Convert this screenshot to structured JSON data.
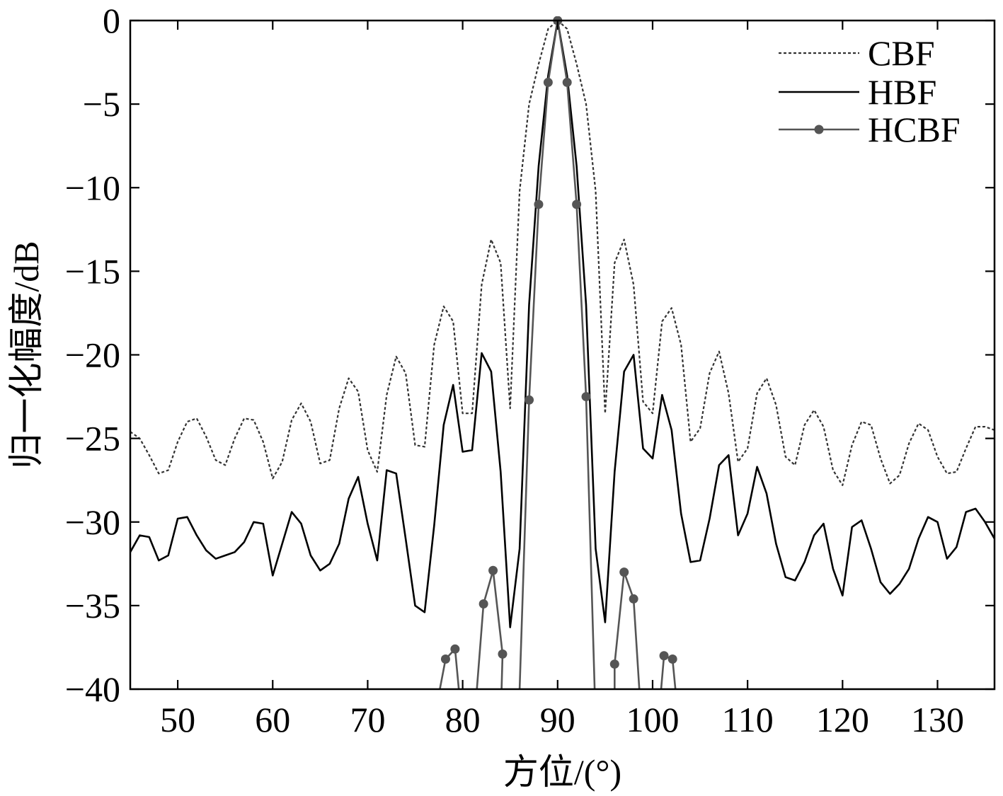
{
  "chart_data": {
    "type": "line",
    "title": "",
    "xlabel": "方位/(°)",
    "ylabel": "归一化幅度/dB",
    "xlim": [
      45,
      136
    ],
    "ylim": [
      -40,
      0
    ],
    "xticks": [
      50,
      60,
      70,
      80,
      90,
      100,
      110,
      120,
      130
    ],
    "yticks": [
      0,
      -5,
      -10,
      -15,
      -20,
      -25,
      -30,
      -35,
      -40
    ],
    "grid": false,
    "legend_position": "top-right",
    "series": [
      {
        "name": "CBF",
        "style": "dotted",
        "color": "#333333",
        "x": [
          45,
          46,
          47,
          48,
          49,
          50,
          51,
          52,
          53,
          54,
          55,
          56,
          57,
          58,
          59,
          60,
          61,
          62,
          63,
          64,
          65,
          66,
          67,
          68,
          69,
          70,
          71,
          72,
          73,
          74,
          75,
          76,
          77,
          78,
          79,
          80,
          81,
          82,
          83,
          84,
          85,
          86,
          87,
          88,
          89,
          90,
          91,
          92,
          93,
          94,
          95,
          96,
          97,
          98,
          99,
          100,
          101,
          102,
          103,
          104,
          105,
          106,
          107,
          108,
          109,
          110,
          111,
          112,
          113,
          114,
          115,
          116,
          117,
          118,
          119,
          120,
          121,
          122,
          123,
          124,
          125,
          126,
          127,
          128,
          129,
          130,
          131,
          132,
          133,
          134,
          135,
          136
        ],
        "y": [
          -24.6,
          -25.0,
          -26.0,
          -27.1,
          -26.9,
          -25.2,
          -24.0,
          -23.8,
          -24.9,
          -26.3,
          -26.6,
          -25.0,
          -23.8,
          -23.9,
          -25.2,
          -27.4,
          -26.4,
          -23.9,
          -22.9,
          -24.0,
          -26.5,
          -26.3,
          -23.2,
          -21.4,
          -22.2,
          -25.7,
          -27.0,
          -22.4,
          -20.1,
          -21.1,
          -25.4,
          -25.5,
          -19.4,
          -17.1,
          -18.0,
          -23.5,
          -23.5,
          -15.8,
          -13.1,
          -14.5,
          -23.2,
          -10.2,
          -5.0,
          -2.6,
          -0.5,
          0,
          -0.5,
          -2.6,
          -5.0,
          -10.2,
          -23.5,
          -14.5,
          -13.1,
          -15.8,
          -22.8,
          -23.5,
          -18.0,
          -17.2,
          -19.4,
          -25.2,
          -24.4,
          -21.1,
          -19.8,
          -22.3,
          -26.4,
          -25.6,
          -22.3,
          -21.4,
          -23.0,
          -26.1,
          -26.6,
          -24.2,
          -23.3,
          -24.3,
          -26.9,
          -27.8,
          -25.4,
          -24.0,
          -24.2,
          -26.2,
          -27.7,
          -27.2,
          -25.3,
          -24.1,
          -24.5,
          -26.1,
          -27.1,
          -27.0,
          -25.6,
          -24.3,
          -24.3,
          -24.5
        ]
      },
      {
        "name": "HBF",
        "style": "solid",
        "color": "#000000",
        "x": [
          45,
          46,
          47,
          48,
          49,
          50,
          51,
          52,
          53,
          54,
          55,
          56,
          57,
          58,
          59,
          60,
          61,
          62,
          63,
          64,
          65,
          66,
          67,
          68,
          69,
          70,
          71,
          72,
          73,
          74,
          75,
          76,
          77,
          78,
          79,
          80,
          81,
          82,
          83,
          84,
          85,
          86,
          87,
          88,
          89,
          90,
          91,
          92,
          93,
          94,
          95,
          96,
          97,
          98,
          99,
          100,
          101,
          102,
          103,
          104,
          105,
          106,
          107,
          108,
          109,
          110,
          111,
          112,
          113,
          114,
          115,
          116,
          117,
          118,
          119,
          120,
          121,
          122,
          123,
          124,
          125,
          126,
          127,
          128,
          129,
          130,
          131,
          132,
          133,
          134,
          135,
          136
        ],
        "y": [
          -31.8,
          -30.8,
          -30.9,
          -32.3,
          -32.0,
          -29.8,
          -29.7,
          -30.8,
          -31.7,
          -32.2,
          -32.0,
          -31.8,
          -31.2,
          -30.0,
          -30.1,
          -33.2,
          -31.3,
          -29.4,
          -30.1,
          -32.0,
          -32.9,
          -32.5,
          -31.3,
          -28.6,
          -27.3,
          -30.1,
          -32.3,
          -26.9,
          -27.1,
          -31.0,
          -35.0,
          -35.4,
          -30.2,
          -24.2,
          -21.8,
          -25.8,
          -25.7,
          -19.9,
          -21.0,
          -27.0,
          -36.3,
          -31.6,
          -17.0,
          -8.7,
          -3.3,
          0,
          -3.3,
          -8.7,
          -17.0,
          -31.6,
          -36.0,
          -27.0,
          -21.0,
          -20.0,
          -25.6,
          -26.2,
          -22.4,
          -24.5,
          -29.5,
          -32.4,
          -32.3,
          -29.8,
          -26.6,
          -26.0,
          -30.8,
          -29.5,
          -26.7,
          -28.3,
          -31.3,
          -33.3,
          -33.5,
          -32.4,
          -30.8,
          -30.1,
          -32.8,
          -34.4,
          -30.3,
          -29.9,
          -31.6,
          -33.6,
          -34.3,
          -33.7,
          -32.8,
          -31.0,
          -29.7,
          -30.0,
          -32.2,
          -31.5,
          -29.4,
          -29.2,
          -30.0,
          -31.0
        ]
      },
      {
        "name": "HCBF",
        "style": "solid-markers",
        "color": "#555555",
        "segments": [
          {
            "x": [
              77.6,
              78.2,
              79.2,
              79.6
            ],
            "y": [
              -40,
              -38.2,
              -37.6,
              -40
            ]
          },
          {
            "x": [
              81.5,
              82.2,
              83.2,
              84.2,
              84.1
            ],
            "y": [
              -40,
              -34.9,
              -32.9,
              -37.9,
              -40
            ]
          },
          {
            "x": [
              86.0,
              87.0,
              88.0,
              89.0,
              90.0,
              91.0,
              92.0,
              93.0,
              93.9
            ],
            "y": [
              -40,
              -22.7,
              -11.0,
              -3.7,
              0,
              -3.7,
              -11.0,
              -22.5,
              -40
            ]
          },
          {
            "x": [
              96.0,
              96.0,
              97.0,
              98.0,
              98.6
            ],
            "y": [
              -40,
              -38.5,
              -33.0,
              -34.6,
              -40
            ]
          },
          {
            "x": [
              100.9,
              101.2,
              102.1,
              102.4
            ],
            "y": [
              -40,
              -38.0,
              -38.2,
              -40
            ]
          }
        ],
        "markers": {
          "x": [
            78.2,
            79.2,
            82.2,
            83.2,
            84.2,
            87.0,
            88.0,
            89.0,
            90.0,
            91.0,
            92.0,
            93.0,
            96.0,
            97.0,
            98.0,
            101.2,
            102.1
          ],
          "y": [
            -38.2,
            -37.6,
            -34.9,
            -32.9,
            -37.9,
            -22.7,
            -11.0,
            -3.7,
            0,
            -3.7,
            -11.0,
            -22.5,
            -38.5,
            -33.0,
            -34.6,
            -38.0,
            -38.2
          ]
        }
      }
    ]
  }
}
